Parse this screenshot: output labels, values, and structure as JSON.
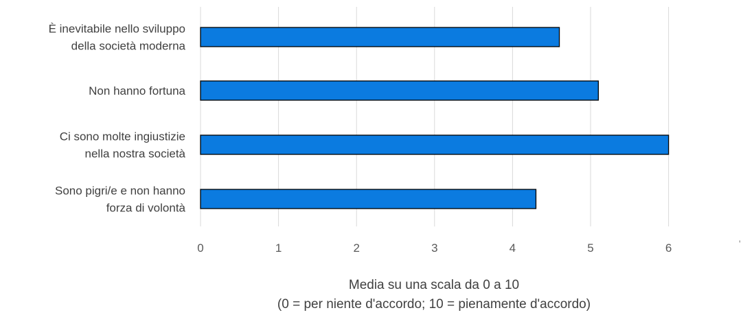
{
  "chart_data": {
    "type": "bar",
    "orientation": "horizontal",
    "categories": [
      [
        "È inevitabile nello sviluppo",
        "della società moderna"
      ],
      [
        "Non hanno fortuna"
      ],
      [
        "Ci sono molte ingiustizie",
        "nella nostra società"
      ],
      [
        "Sono pigri/e e non hanno",
        "forza di volontà"
      ]
    ],
    "values": [
      4.6,
      5.1,
      6.0,
      4.3
    ],
    "xlim": [
      0,
      7
    ],
    "x_ticks": [
      "0",
      "1",
      "2",
      "3",
      "4",
      "5",
      "6"
    ],
    "xlabel_lines": [
      "Media su una scala da 0 a 10",
      "(0 = per niente d'accordo; 10 = pienamente d'accordo)"
    ],
    "grid": "vertical",
    "bar_color": "#0b7be0",
    "stray_mark": "'"
  }
}
